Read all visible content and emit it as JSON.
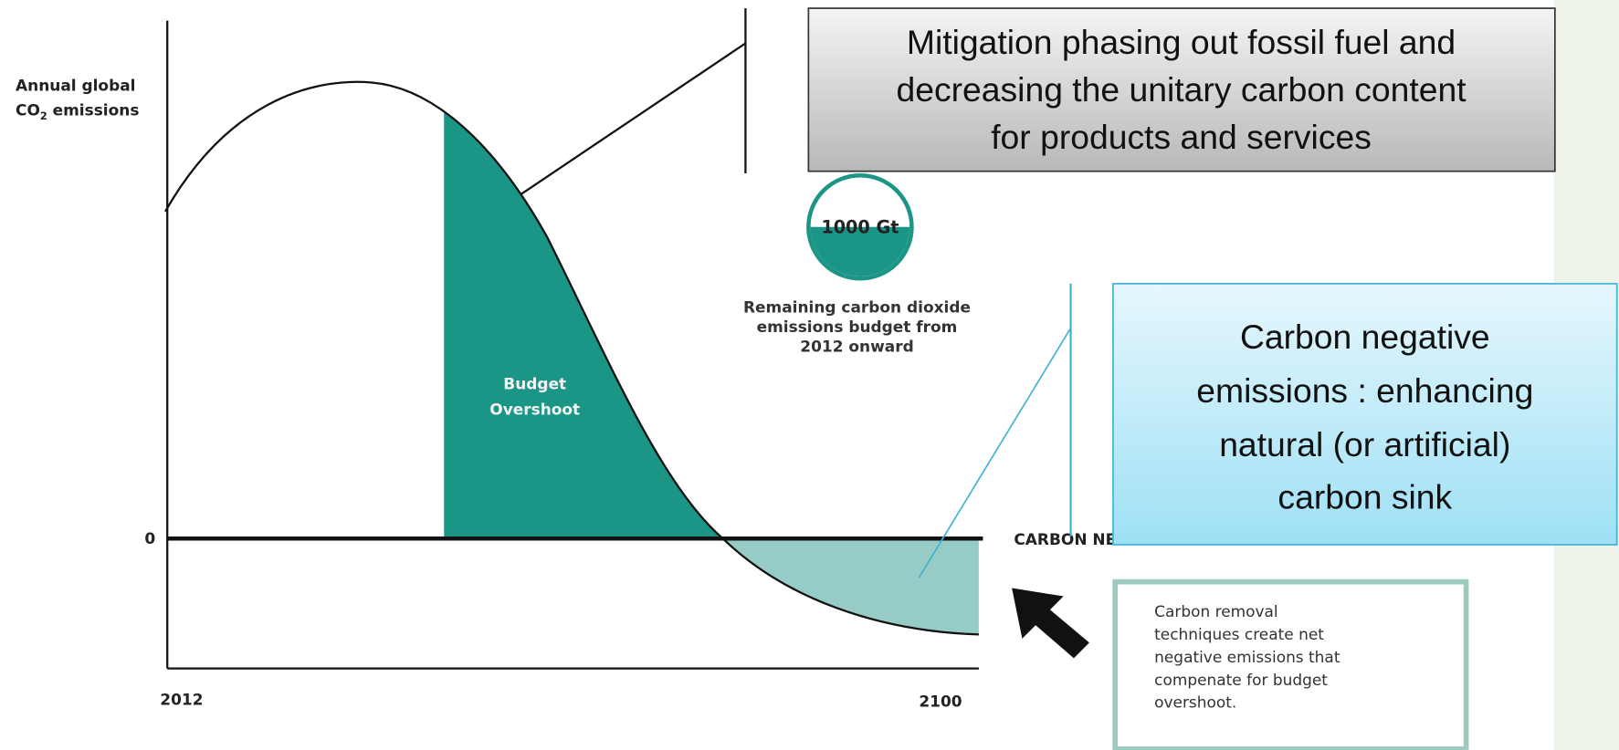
{
  "axis": {
    "y_label": [
      "Annual global",
      "CO",
      "2",
      " emissions"
    ],
    "zero": "0",
    "x_start": "2012",
    "x_end": "2100"
  },
  "regions": {
    "overshoot": [
      "Budget",
      "Overshoot"
    ],
    "neutral_label": "CARBON NEUTRALITY"
  },
  "budget": {
    "amount": "1000 Gt",
    "caption": [
      "Remaining carbon dioxide",
      "emissions budget from",
      "2012 onward"
    ]
  },
  "callouts": {
    "mitigation": [
      "Mitigation  phasing out fossil fuel and",
      "decreasing  the unitary carbon content",
      "for products and services"
    ],
    "negative": [
      "Carbon negative",
      "emissions : enhancing",
      "natural  (or artificial)",
      "carbon sink"
    ],
    "removal": [
      "Carbon removal",
      "techniques create net",
      "negative emissions that",
      "compenate for budget",
      "overshoot."
    ]
  }
}
